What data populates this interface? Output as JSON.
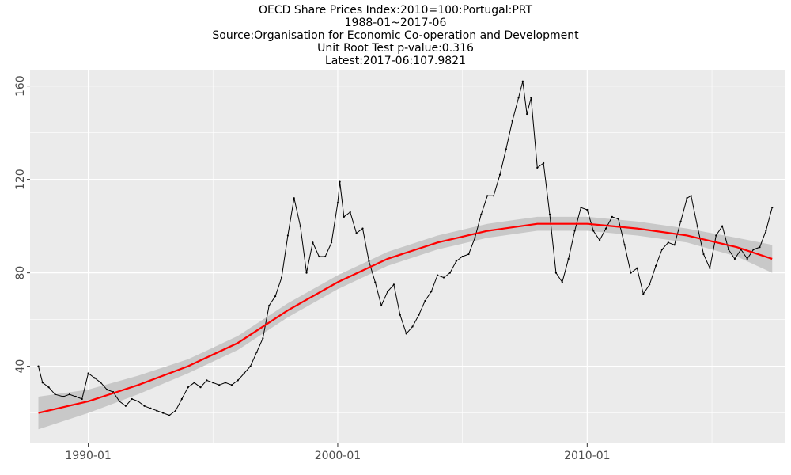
{
  "title_lines": [
    "OECD Share Prices Index:2010=100:Portugal:PRT",
    "1988-01~2017-06",
    "Source:Organisation for Economic Co-operation and Development",
    "Unit Root Test p-value:0.316",
    "Latest:2017-06:107.9821"
  ],
  "chart_data": {
    "type": "line",
    "title": "OECD Share Prices Index:2010=100:Portugal:PRT",
    "subtitle": "1988-01~2017-06",
    "xlabel": "",
    "ylabel": "",
    "xlim": [
      "1987-09",
      "2017-12"
    ],
    "ylim": [
      7,
      167
    ],
    "x_ticks": [
      "1990-01",
      "2000-01",
      "2010-01"
    ],
    "y_ticks": [
      40,
      80,
      120,
      160
    ],
    "grid": true,
    "colors": {
      "series": "#000000",
      "trend": "#ff0000",
      "band": "#c8c8c8",
      "panel": "#ebebeb",
      "grid": "#ffffff"
    },
    "series": [
      {
        "name": "",
        "points": [
          [
            "1988-01",
            40
          ],
          [
            "1988-03",
            33
          ],
          [
            "1988-06",
            31
          ],
          [
            "1988-09",
            28
          ],
          [
            "1989-01",
            27
          ],
          [
            "1989-04",
            28
          ],
          [
            "1989-07",
            27
          ],
          [
            "1989-10",
            26
          ],
          [
            "1990-01",
            37
          ],
          [
            "1990-04",
            35
          ],
          [
            "1990-07",
            33
          ],
          [
            "1990-10",
            30
          ],
          [
            "1991-01",
            29
          ],
          [
            "1991-04",
            25
          ],
          [
            "1991-07",
            23
          ],
          [
            "1991-10",
            26
          ],
          [
            "1992-01",
            25
          ],
          [
            "1992-04",
            23
          ],
          [
            "1992-07",
            22
          ],
          [
            "1992-10",
            21
          ],
          [
            "1993-01",
            20
          ],
          [
            "1993-04",
            19
          ],
          [
            "1993-07",
            21
          ],
          [
            "1993-10",
            26
          ],
          [
            "1994-01",
            31
          ],
          [
            "1994-04",
            33
          ],
          [
            "1994-07",
            31
          ],
          [
            "1994-10",
            34
          ],
          [
            "1995-01",
            33
          ],
          [
            "1995-04",
            32
          ],
          [
            "1995-07",
            33
          ],
          [
            "1995-10",
            32
          ],
          [
            "1996-01",
            34
          ],
          [
            "1996-04",
            37
          ],
          [
            "1996-07",
            40
          ],
          [
            "1996-10",
            46
          ],
          [
            "1997-01",
            52
          ],
          [
            "1997-04",
            66
          ],
          [
            "1997-07",
            70
          ],
          [
            "1997-10",
            78
          ],
          [
            "1998-01",
            96
          ],
          [
            "1998-04",
            112
          ],
          [
            "1998-07",
            100
          ],
          [
            "1998-10",
            80
          ],
          [
            "1999-01",
            93
          ],
          [
            "1999-04",
            87
          ],
          [
            "1999-07",
            87
          ],
          [
            "1999-10",
            93
          ],
          [
            "2000-01",
            110
          ],
          [
            "2000-02",
            119
          ],
          [
            "2000-04",
            104
          ],
          [
            "2000-07",
            106
          ],
          [
            "2000-10",
            97
          ],
          [
            "2001-01",
            99
          ],
          [
            "2001-04",
            85
          ],
          [
            "2001-07",
            76
          ],
          [
            "2001-10",
            66
          ],
          [
            "2002-01",
            72
          ],
          [
            "2002-04",
            75
          ],
          [
            "2002-07",
            62
          ],
          [
            "2002-10",
            54
          ],
          [
            "2003-01",
            57
          ],
          [
            "2003-04",
            62
          ],
          [
            "2003-07",
            68
          ],
          [
            "2003-10",
            72
          ],
          [
            "2004-01",
            79
          ],
          [
            "2004-04",
            78
          ],
          [
            "2004-07",
            80
          ],
          [
            "2004-10",
            85
          ],
          [
            "2005-01",
            87
          ],
          [
            "2005-04",
            88
          ],
          [
            "2005-07",
            95
          ],
          [
            "2005-10",
            105
          ],
          [
            "2006-01",
            113
          ],
          [
            "2006-04",
            113
          ],
          [
            "2006-07",
            122
          ],
          [
            "2006-10",
            133
          ],
          [
            "2007-01",
            145
          ],
          [
            "2007-04",
            155
          ],
          [
            "2007-06",
            162
          ],
          [
            "2007-08",
            148
          ],
          [
            "2007-10",
            155
          ],
          [
            "2008-01",
            125
          ],
          [
            "2008-04",
            127
          ],
          [
            "2008-07",
            105
          ],
          [
            "2008-10",
            80
          ],
          [
            "2009-01",
            76
          ],
          [
            "2009-04",
            86
          ],
          [
            "2009-07",
            98
          ],
          [
            "2009-10",
            108
          ],
          [
            "2010-01",
            107
          ],
          [
            "2010-04",
            98
          ],
          [
            "2010-07",
            94
          ],
          [
            "2010-10",
            99
          ],
          [
            "2011-01",
            104
          ],
          [
            "2011-04",
            103
          ],
          [
            "2011-07",
            92
          ],
          [
            "2011-10",
            80
          ],
          [
            "2012-01",
            82
          ],
          [
            "2012-04",
            71
          ],
          [
            "2012-07",
            75
          ],
          [
            "2012-10",
            83
          ],
          [
            "2013-01",
            90
          ],
          [
            "2013-04",
            93
          ],
          [
            "2013-07",
            92
          ],
          [
            "2013-10",
            102
          ],
          [
            "2014-01",
            112
          ],
          [
            "2014-03",
            113
          ],
          [
            "2014-06",
            100
          ],
          [
            "2014-09",
            88
          ],
          [
            "2014-12",
            82
          ],
          [
            "2015-03",
            96
          ],
          [
            "2015-06",
            100
          ],
          [
            "2015-09",
            90
          ],
          [
            "2015-12",
            86
          ],
          [
            "2016-03",
            90
          ],
          [
            "2016-06",
            86
          ],
          [
            "2016-09",
            90
          ],
          [
            "2016-12",
            91
          ],
          [
            "2017-03",
            98
          ],
          [
            "2017-06",
            107.98
          ]
        ]
      }
    ],
    "trend": {
      "points": [
        [
          "1988-01",
          20
        ],
        [
          "1990-01",
          25
        ],
        [
          "1992-01",
          32
        ],
        [
          "1994-01",
          40
        ],
        [
          "1996-01",
          50
        ],
        [
          "1998-01",
          64
        ],
        [
          "2000-01",
          76
        ],
        [
          "2002-01",
          86
        ],
        [
          "2004-01",
          93
        ],
        [
          "2006-01",
          98
        ],
        [
          "2008-01",
          101
        ],
        [
          "2010-01",
          101
        ],
        [
          "2012-01",
          99
        ],
        [
          "2014-01",
          96
        ],
        [
          "2016-01",
          91
        ],
        [
          "2017-06",
          86
        ]
      ],
      "band_halfwidth": [
        7,
        5,
        4,
        3,
        3,
        3,
        3,
        3,
        3,
        3,
        3,
        3,
        3,
        3,
        4,
        6
      ]
    }
  }
}
